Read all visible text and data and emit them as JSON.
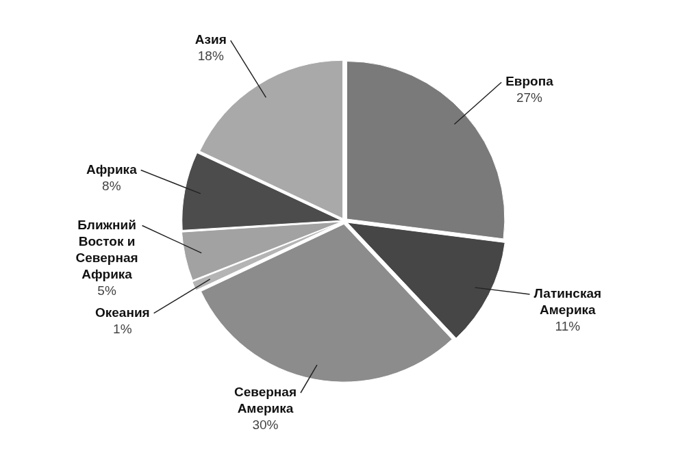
{
  "chart_data": {
    "type": "pie",
    "categories": [
      "Европа",
      "Латинская Америка",
      "Северная Америка",
      "Океания",
      "Ближний Восток и Северная Африка",
      "Африка",
      "Азия"
    ],
    "values": [
      27,
      11,
      30,
      1,
      5,
      8,
      18
    ],
    "value_labels": [
      "27%",
      "11%",
      "30%",
      "1%",
      "5%",
      "8%",
      "18%"
    ],
    "colors": [
      "#7a7a7a",
      "#464646",
      "#8c8c8c",
      "#b4b4b4",
      "#a2a2a2",
      "#4c4c4c",
      "#a9a9a9"
    ],
    "legend": false
  }
}
